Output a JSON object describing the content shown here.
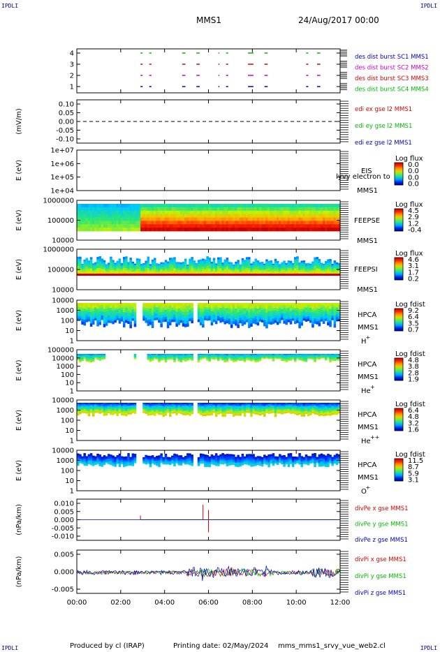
{
  "corners": {
    "tl": "IPDLI",
    "tr": "IPDLI",
    "bl": "IPDLI",
    "br": "IPDLI"
  },
  "header": {
    "spacecraft": "MMS1",
    "date": "24/Aug/2017 00:00"
  },
  "footer": {
    "produced": "Produced by cl (IRAP)",
    "printed": "Printing date: 02/May/2024",
    "file": "mms_mms1_srvy_vue_web2.cl"
  },
  "chart_data": [
    {
      "id": "burst",
      "type": "timeline",
      "yticks": [
        "4",
        "3",
        "2",
        "1"
      ],
      "legend": [
        {
          "text": "des dist burst SC1 MMS1",
          "color": "#0000cc"
        },
        {
          "text": "des dist burst SC2 MMS2",
          "color": "#cc00cc"
        },
        {
          "text": "des dist burst SC3 MMS3",
          "color": "#dd0000"
        },
        {
          "text": "des dist burst SC4 MMS4",
          "color": "#00bb00"
        }
      ],
      "intervals_hours": [
        [
          2.9,
          3.0
        ],
        [
          3.3,
          3.4
        ],
        [
          4.8,
          4.95
        ],
        [
          5.45,
          5.6
        ],
        [
          6.45,
          6.5
        ],
        [
          6.8,
          6.9
        ],
        [
          7.8,
          8.05
        ],
        [
          8.55,
          8.7
        ],
        [
          10.45,
          10.55
        ],
        [
          10.95,
          11.1
        ]
      ]
    },
    {
      "id": "edi",
      "type": "line",
      "ylabel": "(mV/m)",
      "yticks": [
        "0.10",
        "0.05",
        "0.00",
        "-0.05",
        "-0.10"
      ],
      "ylim": [
        -0.125,
        0.125
      ],
      "legend": [
        {
          "text": "edi ex gse l2 MMS1",
          "color": "#dd0000"
        },
        {
          "text": "edi ey gse l2 MMS1",
          "color": "#00bb00"
        },
        {
          "text": "edi ez gse l2 MMS1",
          "color": "#0000cc"
        }
      ]
    },
    {
      "id": "eis",
      "type": "heatmap",
      "ylabel": "E (eV)",
      "yticks": [
        "1e+07",
        "1e+06",
        "1e+05",
        "1e+04"
      ],
      "labels": [
        "EIS",
        "MMS1"
      ],
      "overlay": "lyvy electron to",
      "cb_title": "Log flux",
      "cb_ticks": [
        "0.0",
        "0.0",
        "0.0",
        "0.0"
      ]
    },
    {
      "id": "feepse",
      "type": "heatmap",
      "ylabel": "E (eV)",
      "yticks": [
        "1000000",
        "100000",
        "10000"
      ],
      "labels": [
        "FEEPSE",
        "MMS1"
      ],
      "cb_title": "Log flux",
      "cb_ticks": [
        "4.5",
        "2.9",
        "1.2",
        "-0.4"
      ]
    },
    {
      "id": "feepsi",
      "type": "heatmap",
      "ylabel": "E (eV)",
      "yticks": [
        "1000000",
        "100000",
        "10000"
      ],
      "labels": [
        "FEEPSI",
        "MMS1"
      ],
      "cb_title": "Log flux",
      "cb_ticks": [
        "4.6",
        "3.1",
        "1.7",
        "0.2"
      ]
    },
    {
      "id": "hpca_h",
      "type": "heatmap",
      "ylabel": "E (eV)",
      "yticks": [
        "10000",
        "1000",
        "100",
        "10",
        "1"
      ],
      "labels": [
        "HPCA",
        "MMS1"
      ],
      "species": "H",
      "sup": "+",
      "cb_title": "Log fdist",
      "cb_ticks": [
        "9.2",
        "6.4",
        "3.5",
        "0.7"
      ]
    },
    {
      "id": "hpca_he",
      "type": "heatmap",
      "ylabel": "E (eV)",
      "yticks": [
        "100000",
        "10000",
        "1000",
        "100",
        "10",
        "1"
      ],
      "labels": [
        "HPCA",
        "MMS1"
      ],
      "species": "He",
      "sup": "+",
      "cb_title": "Log fdist",
      "cb_ticks": [
        "4.8",
        "3.8",
        "2.8",
        "1.9"
      ]
    },
    {
      "id": "hpca_hepp",
      "type": "heatmap",
      "ylabel": "E (eV)",
      "yticks": [
        "10000",
        "1000",
        "100",
        "10",
        "1"
      ],
      "labels": [
        "HPCA",
        "MMS1"
      ],
      "species": "He",
      "sup": "++",
      "cb_title": "Log fdist",
      "cb_ticks": [
        "6.4",
        "4.8",
        "3.2",
        "1.6"
      ]
    },
    {
      "id": "hpca_o",
      "type": "heatmap",
      "ylabel": "E (eV)",
      "yticks": [
        "10000",
        "1000",
        "100",
        "10",
        "1"
      ],
      "labels": [
        "HPCA",
        "MMS1"
      ],
      "species": "O",
      "sup": "+",
      "cb_title": "Log fdist",
      "cb_ticks": [
        "11.5",
        "8.7",
        "5.9",
        "3.1"
      ]
    },
    {
      "id": "divpe",
      "type": "line",
      "ylabel": "(nPa/km)",
      "yticks": [
        "0.010",
        "0.005",
        "0.000",
        "-0.005",
        "-0.010"
      ],
      "ylim": [
        -0.0115,
        0.0115
      ],
      "legend": [
        {
          "text": "divPe x gse MMS1",
          "color": "#dd0000"
        },
        {
          "text": "divPe y gse MMS1",
          "color": "#00bb00"
        },
        {
          "text": "divPe z gse MMS1",
          "color": "#0000cc"
        }
      ]
    },
    {
      "id": "divpi",
      "type": "line",
      "ylabel": "(nPa/km)",
      "yticks": [
        "0.005",
        "0.000",
        "-0.005"
      ],
      "ylim": [
        -0.0072,
        0.0072
      ],
      "legend": [
        {
          "text": "divPi x gse MMS1",
          "color": "#dd0000"
        },
        {
          "text": "divPi y gse MMS1",
          "color": "#00bb00"
        },
        {
          "text": "divPi z gse MMS1",
          "color": "#0000cc"
        }
      ]
    }
  ],
  "time_axis": {
    "ticks": [
      "00:00",
      "02:00",
      "04:00",
      "06:00",
      "08:00",
      "10:00",
      "12:00"
    ],
    "range_hours": [
      0,
      12
    ]
  }
}
